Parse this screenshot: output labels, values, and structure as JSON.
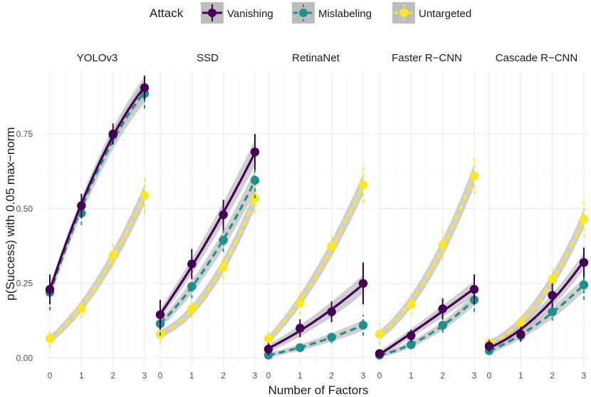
{
  "chart_data": {
    "type": "line",
    "title": "",
    "xlabel": "Number of Factors",
    "ylabel": "p(Success) with 0.05 max−norm",
    "x": [
      0,
      1,
      2,
      3
    ],
    "xticks": [
      "0",
      "1",
      "2",
      "3"
    ],
    "yticks": [
      "0.00",
      "0.25",
      "0.50",
      "0.75"
    ],
    "ylim": [
      -0.03,
      0.96
    ],
    "legend": {
      "title": "Attack",
      "position": "top",
      "entries": [
        "Vanishing",
        "Mislabeling",
        "Untargeted"
      ]
    },
    "series_styles": {
      "Vanishing": {
        "color": "#440154",
        "dash": "solid"
      },
      "Mislabeling": {
        "color": "#21908C",
        "dash": "dashed"
      },
      "Untargeted": {
        "color": "#FDE725",
        "dash": "dashed"
      }
    },
    "ribbon_color": "#bdbdbd",
    "panels": [
      {
        "title": "YOLOv3",
        "series": [
          {
            "name": "Vanishing",
            "values": [
              0.23,
              0.51,
              0.75,
              0.905
            ],
            "err": [
              0.05,
              0.04,
              0.035,
              0.04
            ]
          },
          {
            "name": "Mislabeling",
            "values": [
              0.22,
              0.485,
              0.745,
              0.885
            ],
            "err": [
              0.06,
              0.04,
              0.03,
              0.05
            ]
          },
          {
            "name": "Untargeted",
            "values": [
              0.065,
              0.165,
              0.345,
              0.545
            ],
            "err": [
              0.03,
              0.03,
              0.04,
              0.06
            ]
          }
        ]
      },
      {
        "title": "SSD",
        "series": [
          {
            "name": "Vanishing",
            "values": [
              0.145,
              0.315,
              0.48,
              0.69
            ],
            "err": [
              0.05,
              0.05,
              0.05,
              0.06
            ]
          },
          {
            "name": "Mislabeling",
            "values": [
              0.115,
              0.24,
              0.395,
              0.595
            ],
            "err": [
              0.04,
              0.04,
              0.04,
              0.06
            ]
          },
          {
            "name": "Untargeted",
            "values": [
              0.08,
              0.165,
              0.305,
              0.535
            ],
            "err": [
              0.03,
              0.03,
              0.04,
              0.05
            ]
          }
        ]
      },
      {
        "title": "RetinaNet",
        "series": [
          {
            "name": "Vanishing",
            "values": [
              0.03,
              0.1,
              0.155,
              0.25
            ],
            "err": [
              0.02,
              0.03,
              0.035,
              0.07
            ]
          },
          {
            "name": "Mislabeling",
            "values": [
              0.01,
              0.035,
              0.07,
              0.11
            ],
            "err": [
              0.015,
              0.015,
              0.02,
              0.035
            ]
          },
          {
            "name": "Untargeted",
            "values": [
              0.065,
              0.185,
              0.375,
              0.58
            ],
            "err": [
              0.03,
              0.04,
              0.04,
              0.06
            ]
          }
        ]
      },
      {
        "title": "Faster R−CNN",
        "series": [
          {
            "name": "Vanishing",
            "values": [
              0.015,
              0.075,
              0.165,
              0.23
            ],
            "err": [
              0.015,
              0.02,
              0.035,
              0.05
            ]
          },
          {
            "name": "Mislabeling",
            "values": [
              0.01,
              0.045,
              0.11,
              0.195
            ],
            "err": [
              0.01,
              0.015,
              0.025,
              0.04
            ]
          },
          {
            "name": "Untargeted",
            "values": [
              0.08,
              0.18,
              0.38,
              0.61
            ],
            "err": [
              0.035,
              0.035,
              0.05,
              0.06
            ]
          }
        ]
      },
      {
        "title": "Cascade R−CNN",
        "series": [
          {
            "name": "Vanishing",
            "values": [
              0.04,
              0.08,
              0.21,
              0.32
            ],
            "err": [
              0.02,
              0.025,
              0.04,
              0.05
            ]
          },
          {
            "name": "Mislabeling",
            "values": [
              0.025,
              0.075,
              0.155,
              0.245
            ],
            "err": [
              0.015,
              0.02,
              0.03,
              0.05
            ]
          },
          {
            "name": "Untargeted",
            "values": [
              0.05,
              0.115,
              0.265,
              0.465
            ],
            "err": [
              0.02,
              0.03,
              0.04,
              0.06
            ]
          }
        ]
      }
    ]
  }
}
